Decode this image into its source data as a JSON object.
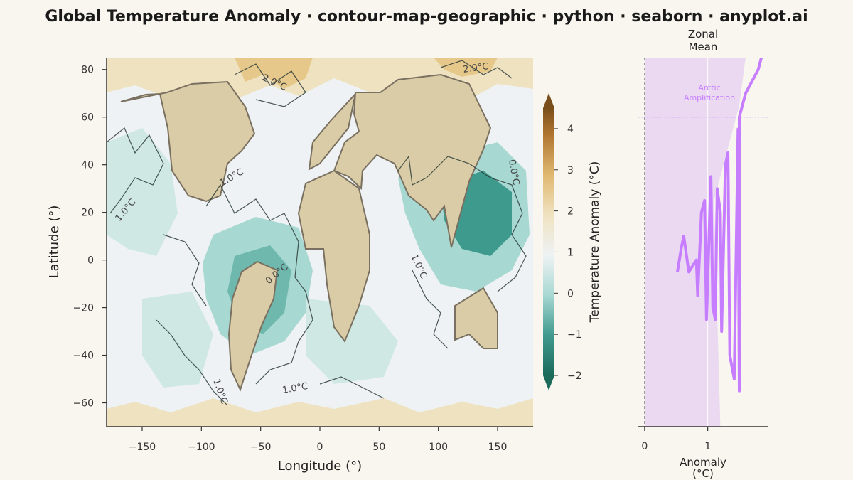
{
  "title": "Global Temperature Anomaly · contour-map-geographic · python · seaborn · anyplot.ai",
  "chart_data": [
    {
      "type": "heatmap",
      "subtype": "filled-contour-map",
      "xlabel": "Longitude (°)",
      "ylabel": "Latitude (°)",
      "xlim": [
        -180,
        180
      ],
      "ylim": [
        -70,
        85
      ],
      "xticks": [
        "−150",
        "−100",
        "−50",
        "0",
        "50",
        "100",
        "150"
      ],
      "xtick_values": [
        -150,
        -100,
        -50,
        0,
        50,
        100,
        150
      ],
      "yticks": [
        "−60",
        "−40",
        "−20",
        "0",
        "20",
        "40",
        "60",
        "80"
      ],
      "ytick_values": [
        -60,
        -40,
        -20,
        0,
        20,
        40,
        60,
        80
      ],
      "colorbar": {
        "label": "Temperature Anomaly (°C)",
        "range": [
          -2,
          4.5
        ],
        "ticks": [
          "−2",
          "−1",
          "0",
          "1",
          "2",
          "3",
          "4"
        ],
        "tick_values": [
          -2,
          -1,
          0,
          1,
          2,
          3,
          4
        ],
        "low_color": "#1b6a5a",
        "mid_color": "#eef2f4",
        "high_color": "#8c5a1e"
      },
      "contour_labels": [
        "2.0°C",
        "2.0°C",
        "1.0°C",
        "1.0°C",
        "0.0°C",
        "0.0°C",
        "1.0°C",
        "1.0°C",
        "1.0°C"
      ],
      "land_color": "#d9cca6",
      "land_edge_color": "#7a7060",
      "grid": false
    },
    {
      "type": "line",
      "title": "Zonal Mean",
      "xlabel": "Anomaly (°C)",
      "xticks": [
        "0",
        "1"
      ],
      "xtick_values": [
        0,
        1
      ],
      "xlim": [
        -0.1,
        1.95
      ],
      "ylim": [
        -70,
        85
      ],
      "series_color": "#c77dff",
      "band_color": "#e8d6f0",
      "annotation": "Arctic Amplification",
      "arctic_line_lat": 60,
      "lat": [
        -5,
        5,
        10,
        -5,
        0,
        -15,
        20,
        25,
        -25,
        35,
        -20,
        -25,
        30,
        20,
        -30,
        40,
        45,
        -40,
        -50,
        55,
        -55,
        60,
        70,
        80,
        85
      ],
      "anomaly": [
        0.52,
        0.58,
        0.62,
        0.7,
        0.82,
        0.84,
        0.9,
        0.95,
        0.98,
        1.05,
        1.08,
        1.12,
        1.15,
        1.2,
        1.22,
        1.28,
        1.32,
        1.35,
        1.42,
        1.48,
        1.5,
        1.5,
        1.6,
        1.8,
        1.85
      ]
    }
  ]
}
